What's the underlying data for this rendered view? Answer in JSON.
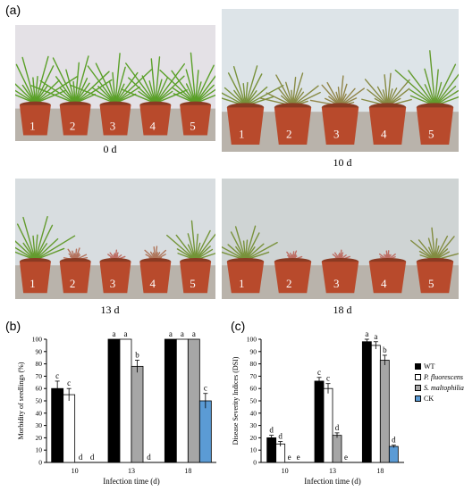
{
  "figure": {
    "panel_a_label": "(a)",
    "panel_b_label": "(b)",
    "panel_c_label": "(c)",
    "photos": [
      {
        "caption": "0 d",
        "pot_labels": [
          "1",
          "2",
          "3",
          "4",
          "5"
        ],
        "wilt": [
          0,
          0,
          0,
          0,
          0
        ],
        "wall": "#e4e1e6"
      },
      {
        "caption": "10 d",
        "pot_labels": [
          "1",
          "2",
          "3",
          "4",
          "5"
        ],
        "wilt": [
          0.3,
          0.45,
          0.55,
          0.45,
          0.1
        ],
        "wall": "#dde4e8"
      },
      {
        "caption": "13 d",
        "pot_labels": [
          "1",
          "2",
          "3",
          "4",
          "5"
        ],
        "wilt": [
          0.1,
          0.9,
          1,
          0.85,
          0.25
        ],
        "wall": "#d8dde0"
      },
      {
        "caption": "18 d",
        "pot_labels": [
          "1",
          "2",
          "3",
          "4",
          "5"
        ],
        "wilt": [
          0.3,
          1,
          1,
          1,
          0.4
        ],
        "wall": "#cfd4d4"
      }
    ]
  },
  "colors": {
    "WT": "#000000",
    "P_fluorescens": "#ffffff",
    "S_maltophilia": "#a6a6a6",
    "CK": "#5b9bd5"
  },
  "legend": [
    "WT",
    "P. fluorescens",
    "S. maltophilia",
    "CK"
  ],
  "chart_data": [
    {
      "type": "bar",
      "panel": "(b)",
      "xlabel": "Infection time (d)",
      "ylabel": "Morbidity of seedlings (%)",
      "ylim": [
        0,
        100
      ],
      "yticks": [
        "0",
        "10",
        "20",
        "30",
        "40",
        "50",
        "60",
        "70",
        "80",
        "90",
        "100"
      ],
      "categories": [
        "10",
        "13",
        "18"
      ],
      "series": [
        {
          "name": "WT",
          "values": [
            60,
            100,
            100
          ],
          "errors": [
            6,
            0,
            0
          ],
          "letters": [
            "c",
            "a",
            "a"
          ]
        },
        {
          "name": "P. fluorescens",
          "values": [
            55,
            100,
            100
          ],
          "errors": [
            5,
            0,
            0
          ],
          "letters": [
            "c",
            "a",
            "a"
          ]
        },
        {
          "name": "S. maltophilia",
          "values": [
            0,
            78,
            100
          ],
          "errors": [
            0,
            5,
            0
          ],
          "letters": [
            "d",
            "b",
            "a"
          ]
        },
        {
          "name": "CK",
          "values": [
            0,
            0,
            50
          ],
          "errors": [
            0,
            0,
            6
          ],
          "letters": [
            "d",
            "d",
            "c"
          ]
        }
      ]
    },
    {
      "type": "bar",
      "panel": "(c)",
      "xlabel": "Infection time (d)",
      "ylabel": "Disease Severity Indices (DSI)",
      "ylim": [
        0,
        100
      ],
      "yticks": [
        "0",
        "10",
        "20",
        "30",
        "40",
        "50",
        "60",
        "70",
        "80",
        "90",
        "100"
      ],
      "categories": [
        "10",
        "13",
        "18"
      ],
      "series": [
        {
          "name": "WT",
          "values": [
            20,
            66,
            98
          ],
          "errors": [
            2,
            3,
            2
          ],
          "letters": [
            "d",
            "c",
            "a"
          ]
        },
        {
          "name": "P. fluorescens",
          "values": [
            15,
            60,
            95
          ],
          "errors": [
            2,
            4,
            3
          ],
          "letters": [
            "d",
            "c",
            "a"
          ]
        },
        {
          "name": "S. maltophilia",
          "values": [
            0,
            22,
            83
          ],
          "errors": [
            0,
            2,
            4
          ],
          "letters": [
            "e",
            "d",
            "b"
          ]
        },
        {
          "name": "CK",
          "values": [
            0,
            0,
            13
          ],
          "errors": [
            0,
            0,
            1
          ],
          "letters": [
            "e",
            "e",
            "d"
          ]
        }
      ]
    }
  ]
}
